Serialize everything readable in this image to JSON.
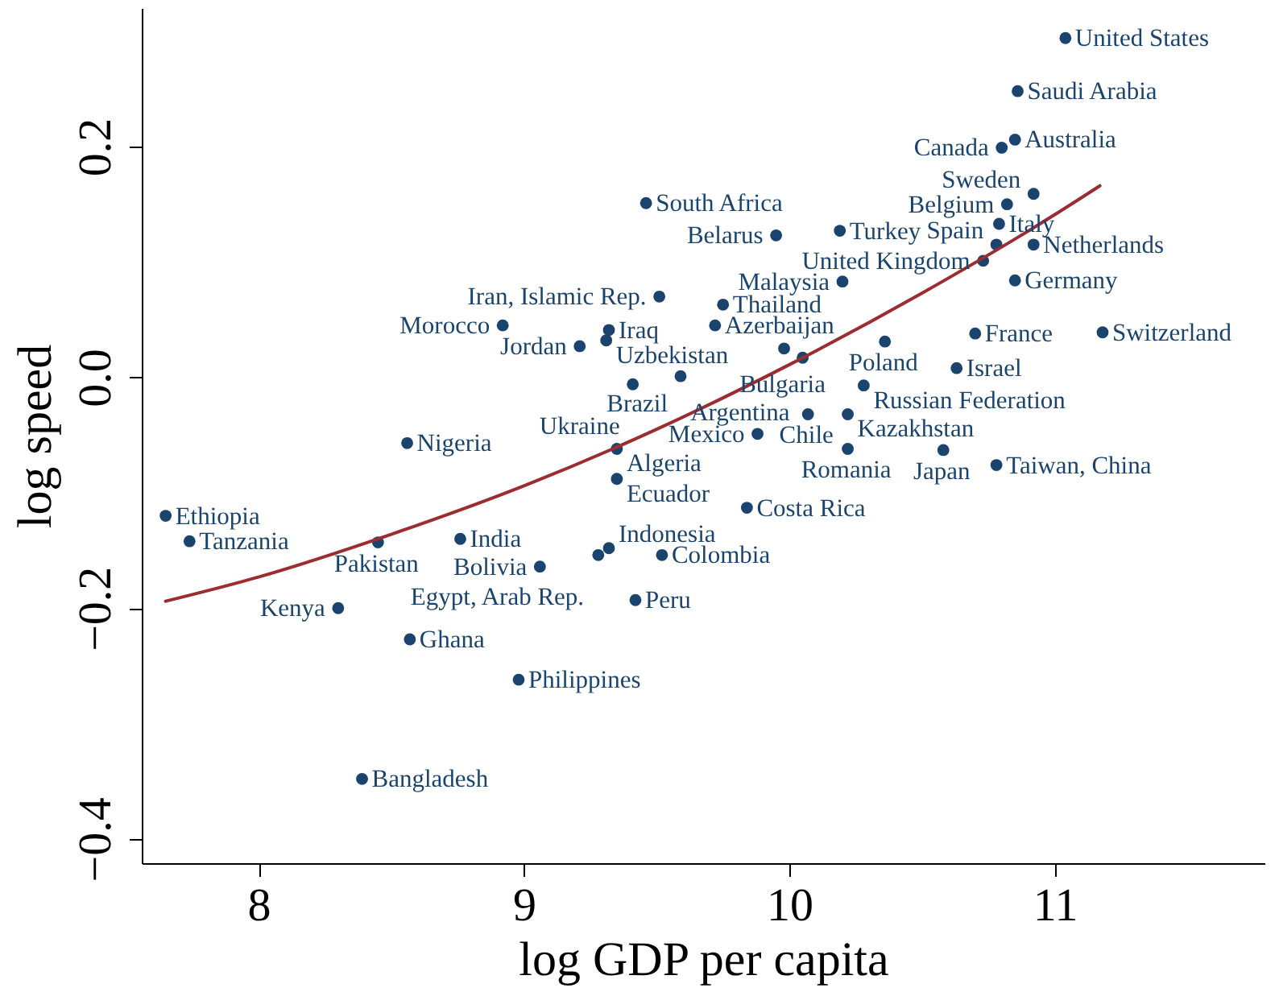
{
  "chart_data": {
    "type": "scatter",
    "xlabel": "log GDP per capita",
    "ylabel": "log speed",
    "xlim": [
      7.56,
      11.79
    ],
    "ylim": [
      -0.421,
      0.32
    ],
    "xticks": [
      8,
      9,
      10,
      11
    ],
    "yticks": [
      {
        "value": -0.4,
        "label": "−0.4"
      },
      {
        "value": -0.2,
        "label": "−0.2"
      },
      {
        "value": 0,
        "label": "0.0"
      },
      {
        "value": 0.2,
        "label": "0.2"
      }
    ],
    "grid": false,
    "series": [
      {
        "marker": "circle",
        "color": "#1a446e",
        "x": [
          11.04,
          10.86,
          10.85,
          10.8,
          10.92,
          10.82,
          9.46,
          9.95,
          10.19,
          10.79,
          10.78,
          10.92,
          10.73,
          10.85,
          10.2,
          9.51,
          9.75,
          8.92,
          9.32,
          9.31,
          9.21,
          9.72,
          9.98,
          10.05,
          10.36,
          10.7,
          11.18,
          10.63,
          9.59,
          9.41,
          10.28,
          10.07,
          10.22,
          9.88,
          10.22,
          10.58,
          10.78,
          9.35,
          9.35,
          9.84,
          8.56,
          7.65,
          7.74,
          8.45,
          8.76,
          9.06,
          9.32,
          9.28,
          9.52,
          8.3,
          8.57,
          8.98,
          9.42,
          8.39
        ],
        "values": [
          0.294,
          0.248,
          0.206,
          0.199,
          0.159,
          0.15,
          0.151,
          0.123,
          0.127,
          0.133,
          0.115,
          0.115,
          0.101,
          0.084,
          0.083,
          0.07,
          0.063,
          0.045,
          0.041,
          0.032,
          0.027,
          0.045,
          0.025,
          0.017,
          0.031,
          0.038,
          0.039,
          0.008,
          0.001,
          -0.006,
          -0.007,
          -0.032,
          -0.032,
          -0.049,
          -0.062,
          -0.063,
          -0.076,
          -0.062,
          -0.088,
          -0.113,
          -0.057,
          -0.12,
          -0.142,
          -0.143,
          -0.14,
          -0.164,
          -0.148,
          -0.154,
          -0.154,
          -0.2,
          -0.227,
          -0.262,
          -0.193,
          -0.348
        ]
      },
      {
        "type": "line",
        "marker": "none",
        "color": "#9b2d30",
        "x": [
          7.65,
          8.0,
          8.5,
          9.0,
          9.5,
          10.0,
          10.5,
          11.0,
          11.17
        ],
        "values": [
          -0.194,
          -0.173,
          -0.136,
          -0.094,
          -0.045,
          0.011,
          0.073,
          0.141,
          0.166
        ]
      }
    ],
    "annotations": [
      {
        "text": "United States",
        "x": 11.04,
        "y": 0.294
      },
      {
        "text": "Saudi Arabia",
        "x": 10.86,
        "y": 0.248
      },
      {
        "text": "Australia",
        "x": 10.85,
        "y": 0.206
      },
      {
        "text": "Canada",
        "x": 10.8,
        "y": 0.199
      },
      {
        "text": "Sweden",
        "x": 10.92,
        "y": 0.159
      },
      {
        "text": "Belgium",
        "x": 10.82,
        "y": 0.15
      },
      {
        "text": "South Africa",
        "x": 9.46,
        "y": 0.151
      },
      {
        "text": "Belarus",
        "x": 9.95,
        "y": 0.123
      },
      {
        "text": "Turkey",
        "x": 10.19,
        "y": 0.127
      },
      {
        "text": "Italy",
        "x": 10.79,
        "y": 0.133
      },
      {
        "text": "Spain",
        "x": 10.78,
        "y": 0.115
      },
      {
        "text": "Netherlands",
        "x": 10.92,
        "y": 0.115
      },
      {
        "text": "United Kingdom",
        "x": 10.73,
        "y": 0.101
      },
      {
        "text": "Germany",
        "x": 10.85,
        "y": 0.084
      },
      {
        "text": "Malaysia",
        "x": 10.2,
        "y": 0.083
      },
      {
        "text": "Iran, Islamic Rep.",
        "x": 9.51,
        "y": 0.07
      },
      {
        "text": "Thailand",
        "x": 9.75,
        "y": 0.063
      },
      {
        "text": "Morocco",
        "x": 8.92,
        "y": 0.045
      },
      {
        "text": "Iraq",
        "x": 9.32,
        "y": 0.041
      },
      {
        "text": "Uzbekistan",
        "x": 9.31,
        "y": 0.032
      },
      {
        "text": "Jordan",
        "x": 9.21,
        "y": 0.027
      },
      {
        "text": "Azerbaijan",
        "x": 9.72,
        "y": 0.045
      },
      {
        "text": "Bulgaria",
        "x": 9.98,
        "y": 0.025
      },
      {
        "text": "Argentina",
        "x": 10.05,
        "y": 0.017
      },
      {
        "text": "Poland",
        "x": 10.36,
        "y": 0.031
      },
      {
        "text": "France",
        "x": 10.7,
        "y": 0.038
      },
      {
        "text": "Switzerland",
        "x": 11.18,
        "y": 0.039
      },
      {
        "text": "Israel",
        "x": 10.63,
        "y": 0.008
      },
      {
        "text": "Brazil",
        "x": 9.59,
        "y": 0.001
      },
      {
        "text": "Ukraine",
        "x": 9.41,
        "y": -0.006
      },
      {
        "text": "Russian Federation",
        "x": 10.28,
        "y": -0.007
      },
      {
        "text": "Chile",
        "x": 10.07,
        "y": -0.032
      },
      {
        "text": "Kazakhstan",
        "x": 10.22,
        "y": -0.032
      },
      {
        "text": "Mexico",
        "x": 9.88,
        "y": -0.049
      },
      {
        "text": "Romania",
        "x": 10.22,
        "y": -0.062
      },
      {
        "text": "Japan",
        "x": 10.58,
        "y": -0.063
      },
      {
        "text": "Taiwan, China",
        "x": 10.78,
        "y": -0.076
      },
      {
        "text": "Algeria",
        "x": 9.35,
        "y": -0.062
      },
      {
        "text": "Ecuador",
        "x": 9.35,
        "y": -0.088
      },
      {
        "text": "Costa Rica",
        "x": 9.84,
        "y": -0.113
      },
      {
        "text": "Nigeria",
        "x": 8.56,
        "y": -0.057
      },
      {
        "text": "Ethiopia",
        "x": 7.65,
        "y": -0.12
      },
      {
        "text": "Tanzania",
        "x": 7.74,
        "y": -0.142
      },
      {
        "text": "Pakistan",
        "x": 8.45,
        "y": -0.143
      },
      {
        "text": "India",
        "x": 8.76,
        "y": -0.14
      },
      {
        "text": "Bolivia",
        "x": 9.06,
        "y": -0.164
      },
      {
        "text": "Indonesia",
        "x": 9.32,
        "y": -0.148
      },
      {
        "text": "Egypt, Arab Rep.",
        "x": 9.28,
        "y": -0.154
      },
      {
        "text": "Colombia",
        "x": 9.52,
        "y": -0.154
      },
      {
        "text": "Kenya",
        "x": 8.3,
        "y": -0.2
      },
      {
        "text": "Ghana",
        "x": 8.57,
        "y": -0.227
      },
      {
        "text": "Philippines",
        "x": 8.98,
        "y": -0.262
      },
      {
        "text": "Peru",
        "x": 9.42,
        "y": -0.193
      },
      {
        "text": "Bangladesh",
        "x": 8.39,
        "y": -0.348
      }
    ]
  }
}
